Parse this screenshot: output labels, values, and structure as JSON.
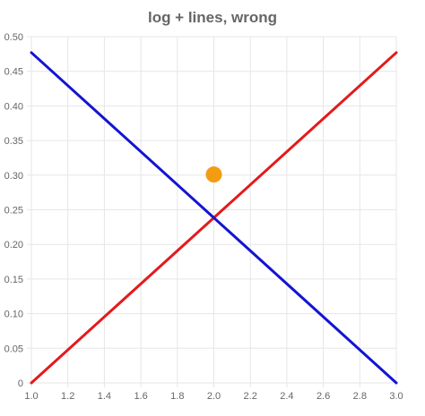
{
  "chart_data": {
    "type": "line",
    "title": "log + lines, wrong",
    "xlabel": "",
    "ylabel": "",
    "xlim": [
      1.0,
      3.0
    ],
    "ylim": [
      0,
      0.5
    ],
    "x_ticks": [
      "1.0",
      "1.2",
      "1.4",
      "1.6",
      "1.8",
      "2.0",
      "2.2",
      "2.4",
      "2.6",
      "2.8",
      "3.0"
    ],
    "y_ticks": [
      "0",
      "0.05",
      "0.10",
      "0.15",
      "0.20",
      "0.25",
      "0.30",
      "0.35",
      "0.40",
      "0.45",
      "0.50"
    ],
    "grid": true,
    "legend": "none",
    "series": [
      {
        "type": "line",
        "color": "#e31a1c",
        "points": [
          [
            1.0,
            0.0
          ],
          [
            3.0,
            0.477
          ]
        ]
      },
      {
        "type": "line",
        "color": "#1414d2",
        "points": [
          [
            1.0,
            0.477
          ],
          [
            3.0,
            0.0
          ]
        ]
      },
      {
        "type": "scatter",
        "color": "#f39c12",
        "points": [
          [
            2.0,
            0.301
          ]
        ]
      }
    ]
  }
}
